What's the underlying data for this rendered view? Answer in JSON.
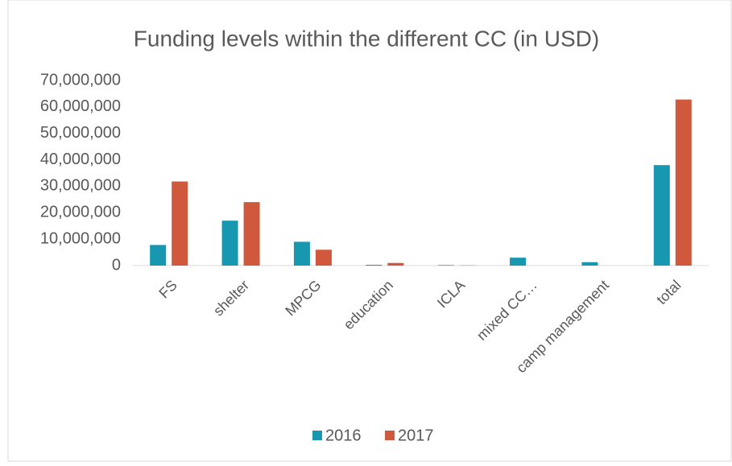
{
  "chart_data": {
    "type": "bar",
    "title": "Funding levels within the different CC (in USD)",
    "categories": [
      "FS",
      "shelter",
      "MPCG",
      "education",
      "ICLA",
      "mixed CC…",
      "camp management",
      "total"
    ],
    "series": [
      {
        "name": "2016",
        "color": "#1797b0",
        "values": [
          7800000,
          17000000,
          9000000,
          300000,
          200000,
          3000000,
          1300000,
          38000000
        ]
      },
      {
        "name": "2017",
        "color": "#d0583c",
        "values": [
          31800000,
          24000000,
          6000000,
          1000000,
          100000,
          0,
          0,
          62800000
        ]
      }
    ],
    "ylim": [
      0,
      70000000
    ],
    "yticks": [
      0,
      {
        "value": 10000000,
        "label": "10,000,000"
      },
      {
        "value": 20000000,
        "label": "20,000,000"
      },
      {
        "value": 30000000,
        "label": "30,000,000"
      },
      {
        "value": 40000000,
        "label": "40,000,000"
      },
      {
        "value": 50000000,
        "label": "50,000,000"
      },
      {
        "value": 60000000,
        "label": "60,000,000"
      },
      {
        "value": 70000000,
        "label": "70,000,000"
      }
    ],
    "grid": false,
    "legend": "bottom"
  }
}
